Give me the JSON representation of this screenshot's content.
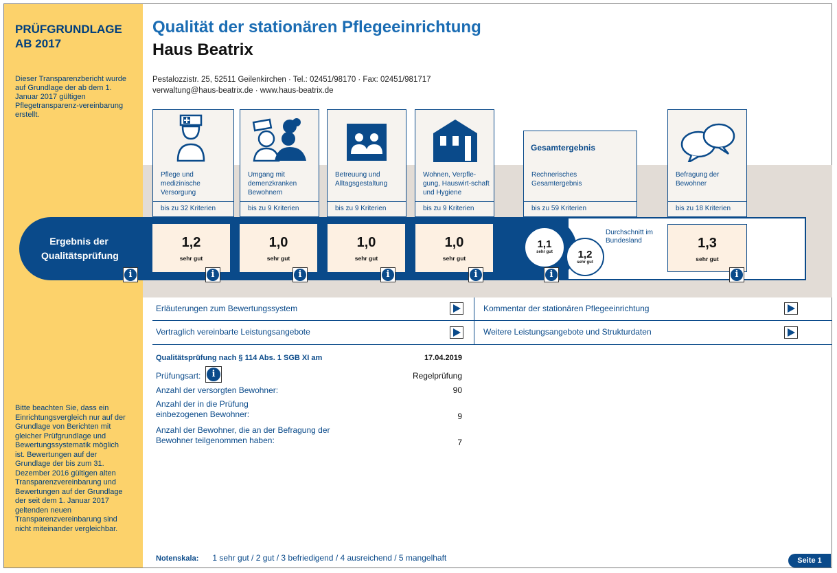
{
  "sidebar": {
    "title_line1": "PRÜFGRUNDLAGE",
    "title_line2": "AB 2017",
    "note1": "Dieser Transparenzbericht wurde auf Grundlage der ab dem 1. Januar 2017 gültigen Pflegetransparenz-vereinbarung erstellt.",
    "note2": "Bitte beachten Sie, dass ein Einrichtungsvergleich nur auf der Grundlage von Berichten mit gleicher Prüfgrundlage und Bewertungssystematik möglich ist. Bewertungen auf der Grundlage der bis zum 31. Dezember 2016 gültigen alten Transparenzvereinbarung und Bewertungen auf der Grundlage der seit dem 1. Januar 2017 geltenden neuen Transparenzvereinbarung sind nicht miteinander vergleichbar."
  },
  "header": {
    "title": "Qualität der stationären Pflegeeinrichtung",
    "facility": "Haus Beatrix",
    "address_line": "Pestalozzistr. 25, 52511 Geilenkirchen · Tel.: 02451/98170 · Fax: 02451/981717",
    "contact_line": "verwaltung@haus-beatrix.de · www.haus-beatrix.de"
  },
  "categories": [
    {
      "label": "Pflege und medizinische Versorgung",
      "criteria": "bis zu 32 Kriterien",
      "score": "1,2",
      "grade": "sehr gut",
      "icon": "nurse-icon"
    },
    {
      "label": "Umgang mit demenzkranken Bewohnern",
      "criteria": "bis zu 9 Kriterien",
      "score": "1,0",
      "grade": "sehr gut",
      "icon": "dementia-care-icon"
    },
    {
      "label": "Betreuung und Alltagsgestaltung",
      "criteria": "bis zu 9 Kriterien",
      "score": "1,0",
      "grade": "sehr gut",
      "icon": "people-icon"
    },
    {
      "label": "Wohnen, Verpfle-gung, Hauswirt-schaft und Hygiene",
      "criteria": "bis zu 9 Kriterien",
      "score": "1,0",
      "grade": "sehr gut",
      "icon": "house-icon"
    }
  ],
  "overall": {
    "title": "Gesamtergebnis",
    "label": "Rechnerisches Gesamtergebnis",
    "criteria": "bis zu 59 Kriterien",
    "score": "1,1",
    "grade": "sehr gut",
    "avg_label": "Durchschnitt im Bundesland",
    "avg_score": "1,2",
    "avg_grade": "sehr gut"
  },
  "survey": {
    "label": "Befragung der Bewohner",
    "criteria": "bis zu 18 Kriterien",
    "score": "1,3",
    "grade": "sehr gut",
    "icon": "speech-bubbles-icon"
  },
  "band_label": "Ergebnis der Qualitätsprüfung",
  "links": [
    "Erläuterungen zum Bewertungssystem",
    "Kommentar der stationären Pflegeeinrichtung",
    "Vertraglich vereinbarte Leistungsangebote",
    "Weitere Leistungsangebote und Strukturdaten"
  ],
  "inspection": {
    "heading": "Qualitätsprüfung nach § 114 Abs. 1 SGB XI am",
    "date": "17.04.2019",
    "type_label": "Prüfungsart:",
    "type_value": "Regelprüfung",
    "residents_label": "Anzahl der versorgten Bewohner:",
    "residents_value": "90",
    "included_label": "Anzahl der in die Prüfung einbezogenen Bewohner:",
    "included_value": "9",
    "surveyed_label": "Anzahl der Bewohner, die an der Befragung der Bewohner teilgenommen haben:",
    "surveyed_value": "7"
  },
  "footer": {
    "scale_label": "Notenskala:",
    "scale": "1 sehr gut / 2 gut / 3 befriedigend / 4 ausreichend / 5 mangelhaft",
    "page": "Seite 1"
  },
  "colors": {
    "primary": "#0a4a8a",
    "sidebar": "#fcd26b",
    "score_bg": "#fdf0e2",
    "panel": "#e2dcd6"
  }
}
